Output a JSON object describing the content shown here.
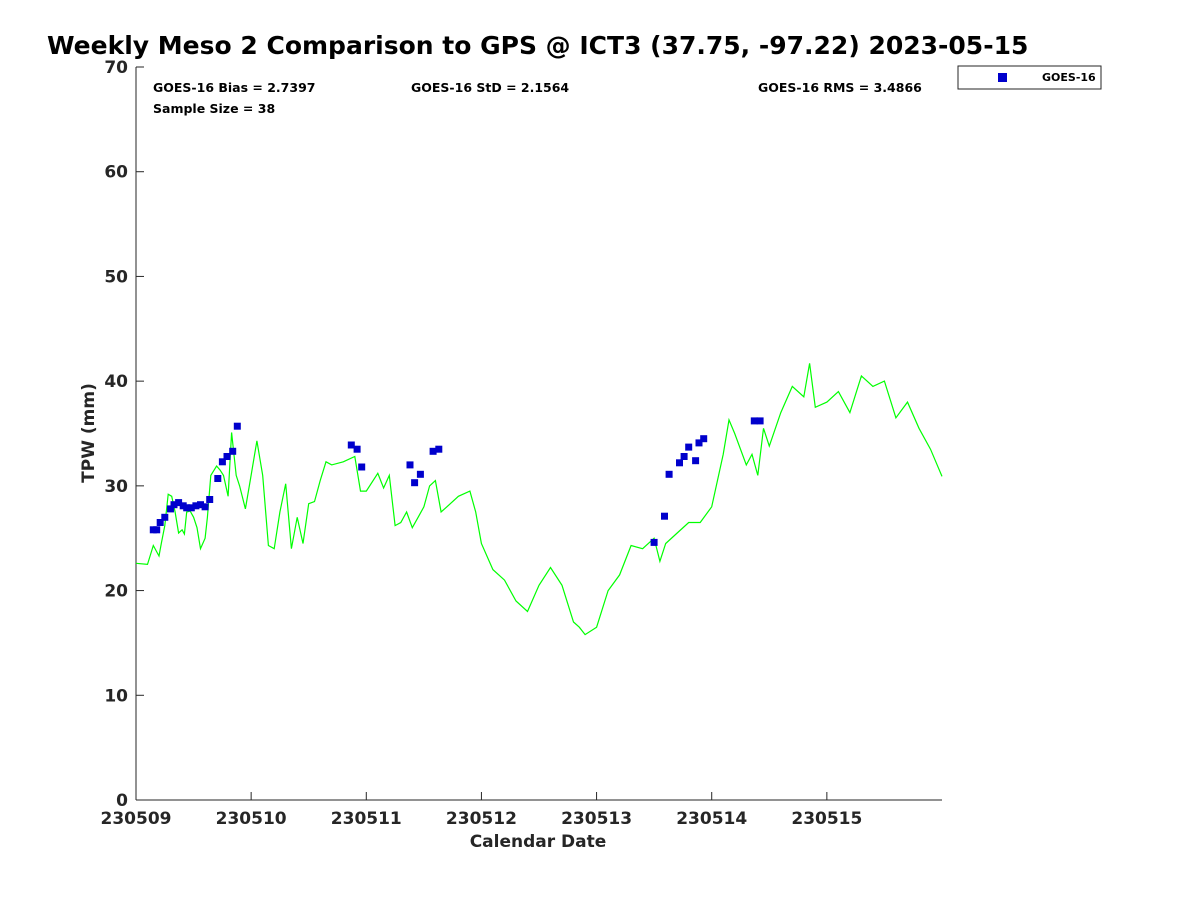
{
  "chart_data": {
    "type": "line",
    "title": "Weekly Meso 2 Comparison to GPS @ ICT3 (37.75, -97.22) 2023-05-15",
    "xlabel": "Calendar Date",
    "ylabel": "TPW (mm)",
    "xlim": [
      230509,
      230516
    ],
    "ylim": [
      0,
      70
    ],
    "x_tick_labels": [
      "230509",
      "230510",
      "230511",
      "230512",
      "230513",
      "230514",
      "230515"
    ],
    "y_ticks": [
      0,
      10,
      20,
      30,
      40,
      50,
      60,
      70
    ],
    "grid": false,
    "legend_position": "outside-top-right",
    "stats": {
      "bias": "GOES-16 Bias = 2.7397",
      "std": "GOES-16 StD = 2.1564",
      "rms": "GOES-16 RMS = 3.4866",
      "sample": "Sample Size = 38"
    },
    "legend": [
      "GOES-16"
    ],
    "colors": {
      "gps": "#00ff00",
      "goes": "#0000cc"
    },
    "gps_line": {
      "x": [
        230509.0,
        230509.1,
        230509.15,
        230509.2,
        230509.22,
        230509.25,
        230509.28,
        230509.31,
        230509.34,
        230509.37,
        230509.4,
        230509.42,
        230509.44,
        230509.47,
        230509.5,
        230509.53,
        230509.56,
        230509.6,
        230509.62,
        230509.65,
        230509.7,
        230509.73,
        230509.76,
        230509.8,
        230509.83,
        230509.87,
        230509.9,
        230509.95,
        230510.0,
        230510.05,
        230510.1,
        230510.15,
        230510.2,
        230510.25,
        230510.3,
        230510.35,
        230510.4,
        230510.45,
        230510.5,
        230510.55,
        230510.6,
        230510.65,
        230510.7,
        230510.8,
        230510.9,
        230510.95,
        230511.0,
        230511.1,
        230511.15,
        230511.2,
        230511.25,
        230511.3,
        230511.35,
        230511.4,
        230511.45,
        230511.5,
        230511.55,
        230511.6,
        230511.65,
        230511.7,
        230511.8,
        230511.9,
        230511.95,
        230512.0,
        230512.1,
        230512.2,
        230512.3,
        230512.4,
        230512.5,
        230512.6,
        230512.7,
        230512.8,
        230512.85,
        230512.9,
        230513.0,
        230513.1,
        230513.2,
        230513.3,
        230513.4,
        230513.5,
        230513.55,
        230513.6,
        230513.7,
        230513.8,
        230513.9,
        230514.0,
        230514.1,
        230514.15,
        230514.2,
        230514.3,
        230514.35,
        230514.4,
        230514.45,
        230514.5,
        230514.6,
        230514.7,
        230514.8,
        230514.85,
        230514.9,
        230515.0,
        230515.1,
        230515.2,
        230515.3,
        230515.4,
        230515.5,
        230515.6,
        230515.7,
        230515.8,
        230515.9,
        230516.0
      ],
      "y": [
        22.6,
        22.5,
        24.3,
        23.3,
        24.5,
        26.2,
        29.2,
        29.0,
        27.5,
        25.5,
        25.8,
        25.4,
        27.5,
        27.6,
        27.0,
        26.0,
        24.0,
        25.0,
        27.0,
        31.0,
        31.9,
        31.5,
        31.0,
        29.0,
        35.1,
        31.0,
        30.0,
        27.8,
        31.0,
        34.3,
        31.0,
        24.3,
        24.0,
        27.5,
        30.2,
        24.0,
        27.0,
        24.5,
        28.3,
        28.5,
        30.5,
        32.3,
        32.0,
        32.3,
        32.8,
        29.5,
        29.5,
        31.2,
        29.8,
        31.0,
        26.2,
        26.5,
        27.5,
        26.0,
        27.0,
        28.0,
        30.0,
        30.5,
        27.5,
        28.0,
        29.0,
        29.5,
        27.5,
        24.5,
        22.0,
        21.0,
        19.0,
        18.0,
        20.5,
        22.2,
        20.5,
        17.0,
        16.5,
        15.8,
        16.5,
        20.0,
        21.5,
        24.3,
        24.0,
        25.0,
        22.8,
        24.5,
        25.5,
        26.5,
        26.5,
        28.0,
        33.0,
        36.3,
        35.0,
        32.0,
        33.0,
        31.0,
        35.5,
        33.8,
        37.0,
        39.5,
        38.5,
        41.7,
        37.5,
        38.0,
        39.0,
        37.0,
        40.5,
        39.5,
        40.0,
        36.5,
        38.0,
        35.5,
        33.5,
        30.9
      ]
    },
    "goes_points": {
      "x": [
        230509.15,
        230509.18,
        230509.21,
        230509.25,
        230509.3,
        230509.33,
        230509.37,
        230509.41,
        230509.44,
        230509.48,
        230509.52,
        230509.56,
        230509.6,
        230509.64,
        230509.71,
        230509.75,
        230509.79,
        230509.84,
        230509.88,
        230510.87,
        230510.92,
        230510.96,
        230511.38,
        230511.42,
        230511.47,
        230511.58,
        230511.63,
        230513.5,
        230513.59,
        230513.63,
        230513.72,
        230513.76,
        230513.8,
        230513.86,
        230513.89,
        230513.93,
        230514.37,
        230514.42
      ],
      "y": [
        25.8,
        25.8,
        26.5,
        27.0,
        27.8,
        28.2,
        28.4,
        28.1,
        27.9,
        27.9,
        28.1,
        28.2,
        28.0,
        28.7,
        30.7,
        32.3,
        32.8,
        33.3,
        35.7,
        33.9,
        33.5,
        31.8,
        32.0,
        30.3,
        31.1,
        33.3,
        33.5,
        24.6,
        27.1,
        31.1,
        32.2,
        32.8,
        33.7,
        32.4,
        34.1,
        34.5,
        36.2,
        36.2
      ]
    }
  }
}
